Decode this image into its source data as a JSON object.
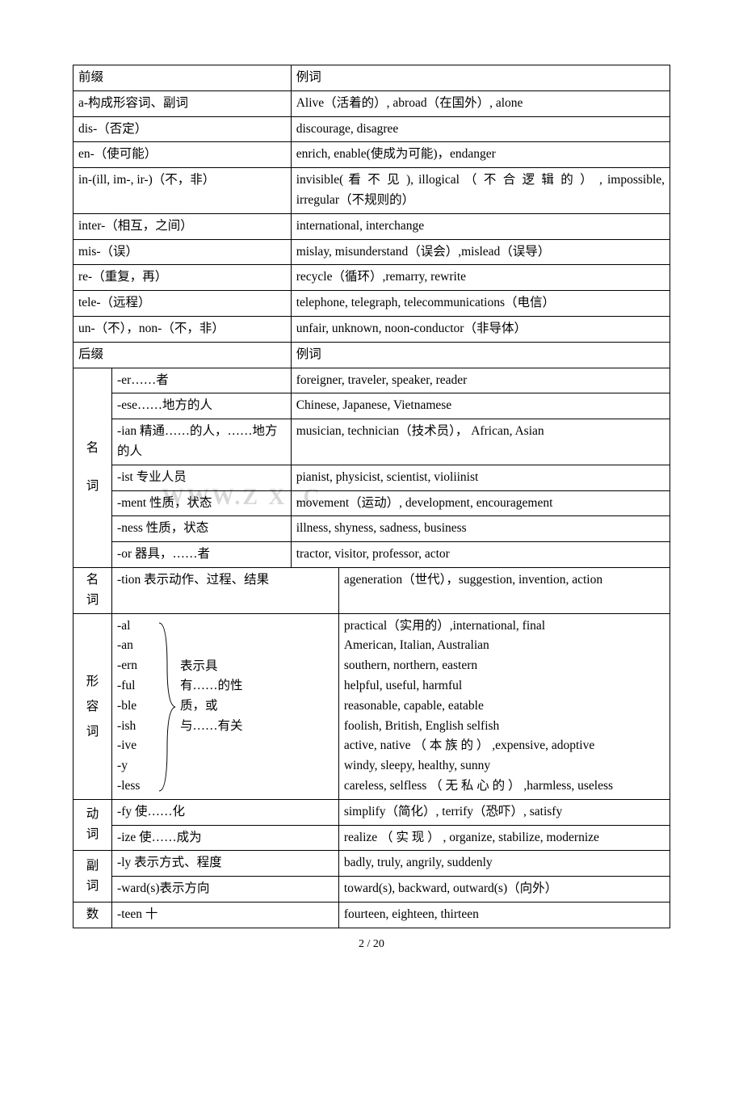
{
  "page_number": "2 / 20",
  "watermark": "WWW.Z    X   .C",
  "table1": {
    "header": {
      "left": "前缀",
      "right": "例词"
    },
    "rows": [
      {
        "prefix": "a-构成形容词、副词",
        "examples": "Alive（活着的）, abroad（在国外）, alone"
      },
      {
        "prefix": "dis-（否定）",
        "examples": "discourage, disagree"
      },
      {
        "prefix": "en-（使可能）",
        "examples": "enrich, enable(使成为可能)，endanger"
      },
      {
        "prefix": "in-(ill, im-, ir-)（不，非）",
        "examples": "invisible( 看 不 见 ), illogical （ 不 合 逻 辑 的 ） , impossible, irregular（不规则的）"
      },
      {
        "prefix": "inter-（相互，之间）",
        "examples": "international, interchange"
      },
      {
        "prefix": "mis-（误）",
        "examples": "mislay, misunderstand（误会）,mislead（误导）"
      },
      {
        "prefix": "re-（重复，再）",
        "examples": "recycle（循环）,remarry, rewrite"
      },
      {
        "prefix": "tele-（远程）",
        "examples": "telephone, telegraph, telecommunications（电信）"
      },
      {
        "prefix": "un-（不），non-（不，非）",
        "examples": "unfair, unknown, noon-conductor（非导体）"
      }
    ]
  },
  "table2": {
    "header": {
      "left": "后缀",
      "right": "例词"
    },
    "noun_label": "名词",
    "noun_rows": [
      {
        "suffix": "-er……者",
        "examples": "foreigner, traveler, speaker, reader"
      },
      {
        "suffix": "-ese……地方的人",
        "examples": "Chinese, Japanese, Vietnamese"
      },
      {
        "suffix": "-ian 精通……的人，……地方的人",
        "examples": "musician, technician（技术员），  African, Asian"
      },
      {
        "suffix": "-ist 专业人员",
        "examples": "pianist, physicist, scientist, violiinist"
      },
      {
        "suffix": "-ment 性质，状态",
        "examples": "movement（运动）, development, encouragement"
      },
      {
        "suffix": "-ness 性质，状态",
        "examples": "illness, shyness, sadness, business"
      },
      {
        "suffix": "-or 器具，……者",
        "examples": "tractor, visitor, professor, actor"
      }
    ]
  },
  "table3": {
    "noun_label": "名词",
    "noun_row": {
      "suffix": "-tion 表示动作、过程、结果",
      "examples": "ageneration（世代），suggestion, invention, action"
    },
    "adj_label": "形容词",
    "adj_suffixes": [
      "-al",
      "-an",
      "-ern",
      "-ful",
      "-ble",
      "-ish",
      "-ive",
      "-y",
      "-less"
    ],
    "adj_desc": "表示具有……的性质，或与……有关",
    "adj_examples": "practical（实用的）,international, final\nAmerican, Italian, Australian\nsouthern, northern, eastern\nhelpful, useful, harmful\nreasonable, capable, eatable\nfoolish, British, English selfish\nactive, native （ 本 族 的 ） ,expensive, adoptive\nwindy, sleepy, healthy, sunny\ncareless, selfless （ 无 私 心 的 ） ,harmless, useless",
    "verb_label": "动词",
    "verb_rows": [
      {
        "suffix": "-fy 使……化",
        "examples": "simplify（简化）, terrify（恐吓）, satisfy"
      },
      {
        "suffix": "-ize 使……成为",
        "examples": "realize （ 实 现 ） , organize, stabilize, modernize"
      }
    ],
    "adv_label": "副词",
    "adv_rows": [
      {
        "suffix": "-ly 表示方式、程度",
        "examples": "badly, truly, angrily, suddenly"
      },
      {
        "suffix": "-ward(s)表示方向",
        "examples": "toward(s), backward, outward(s)（向外）"
      }
    ],
    "num_label": "数",
    "num_row": {
      "suffix": "-teen 十",
      "examples": "fourteen, eighteen, thirteen"
    }
  }
}
